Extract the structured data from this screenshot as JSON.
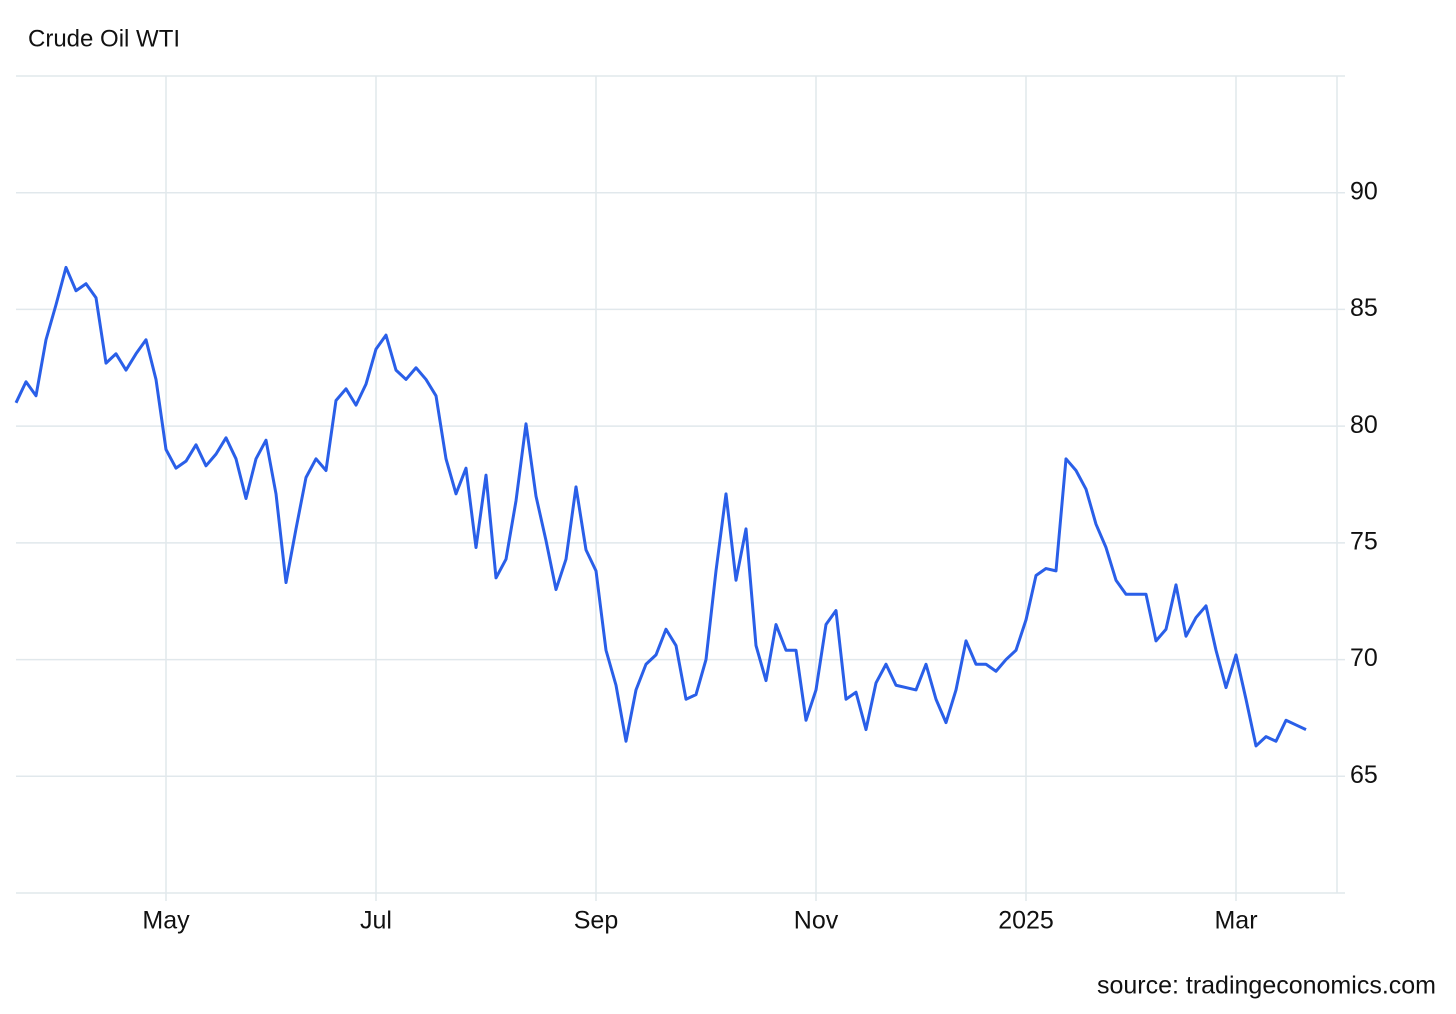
{
  "chart_data": {
    "type": "line",
    "title": "Crude Oil WTI",
    "source": "source: tradingeconomics.com",
    "categories": [
      null,
      null,
      null,
      null,
      null,
      null,
      null,
      null,
      null,
      null,
      null,
      null,
      null,
      null,
      null,
      "May",
      null,
      null,
      null,
      null,
      null,
      null,
      null,
      null,
      null,
      null,
      null,
      null,
      null,
      null,
      null,
      null,
      null,
      null,
      null,
      null,
      "Jul",
      null,
      null,
      null,
      null,
      null,
      null,
      null,
      null,
      null,
      null,
      null,
      null,
      null,
      null,
      null,
      null,
      null,
      null,
      null,
      null,
      null,
      "Sep",
      null,
      null,
      null,
      null,
      null,
      null,
      null,
      null,
      null,
      null,
      null,
      null,
      null,
      null,
      null,
      null,
      null,
      null,
      null,
      null,
      null,
      "Nov",
      null,
      null,
      null,
      null,
      null,
      null,
      null,
      null,
      null,
      null,
      null,
      null,
      null,
      null,
      null,
      null,
      null,
      null,
      null,
      null,
      "2025",
      null,
      null,
      null,
      null,
      null,
      null,
      null,
      null,
      null,
      null,
      null,
      null,
      null,
      null,
      null,
      null,
      null,
      null,
      null,
      null,
      "Mar",
      null,
      null,
      null,
      null,
      null,
      null,
      null
    ],
    "values": [
      81.0,
      81.9,
      81.3,
      83.7,
      85.2,
      86.8,
      85.8,
      86.1,
      85.5,
      82.7,
      83.1,
      82.4,
      83.1,
      83.7,
      82.0,
      79.0,
      78.2,
      78.5,
      79.2,
      78.3,
      78.8,
      79.5,
      78.6,
      76.9,
      78.6,
      79.4,
      77.1,
      73.3,
      75.6,
      77.8,
      78.6,
      78.1,
      81.1,
      81.6,
      80.9,
      81.8,
      83.3,
      83.9,
      82.4,
      82.0,
      82.5,
      82.0,
      81.3,
      78.6,
      77.1,
      78.2,
      74.8,
      77.9,
      73.5,
      74.3,
      76.8,
      80.1,
      77.0,
      75.1,
      73.0,
      74.3,
      77.4,
      74.7,
      73.8,
      70.4,
      68.9,
      66.5,
      68.7,
      69.8,
      70.2,
      71.3,
      70.6,
      68.3,
      68.5,
      70.0,
      73.8,
      77.1,
      73.4,
      75.6,
      70.6,
      69.1,
      71.5,
      70.4,
      70.4,
      67.4,
      68.7,
      71.5,
      72.1,
      68.3,
      68.6,
      67.0,
      69.0,
      69.8,
      68.9,
      68.8,
      68.7,
      69.8,
      68.3,
      67.3,
      68.7,
      70.8,
      69.8,
      69.8,
      69.5,
      70.0,
      70.4,
      71.7,
      73.6,
      73.9,
      73.8,
      78.6,
      78.1,
      77.3,
      75.8,
      74.8,
      73.4,
      72.8,
      72.8,
      72.8,
      70.8,
      71.3,
      73.2,
      71.0,
      71.8,
      72.3,
      70.4,
      68.8,
      70.2,
      68.3,
      66.3,
      66.7,
      66.5,
      67.4,
      67.2,
      67.0
    ],
    "color": "#2a5fe8",
    "ylim": [
      60,
      95
    ],
    "yticks": [
      65,
      70,
      75,
      80,
      85,
      90
    ],
    "grid": true
  }
}
